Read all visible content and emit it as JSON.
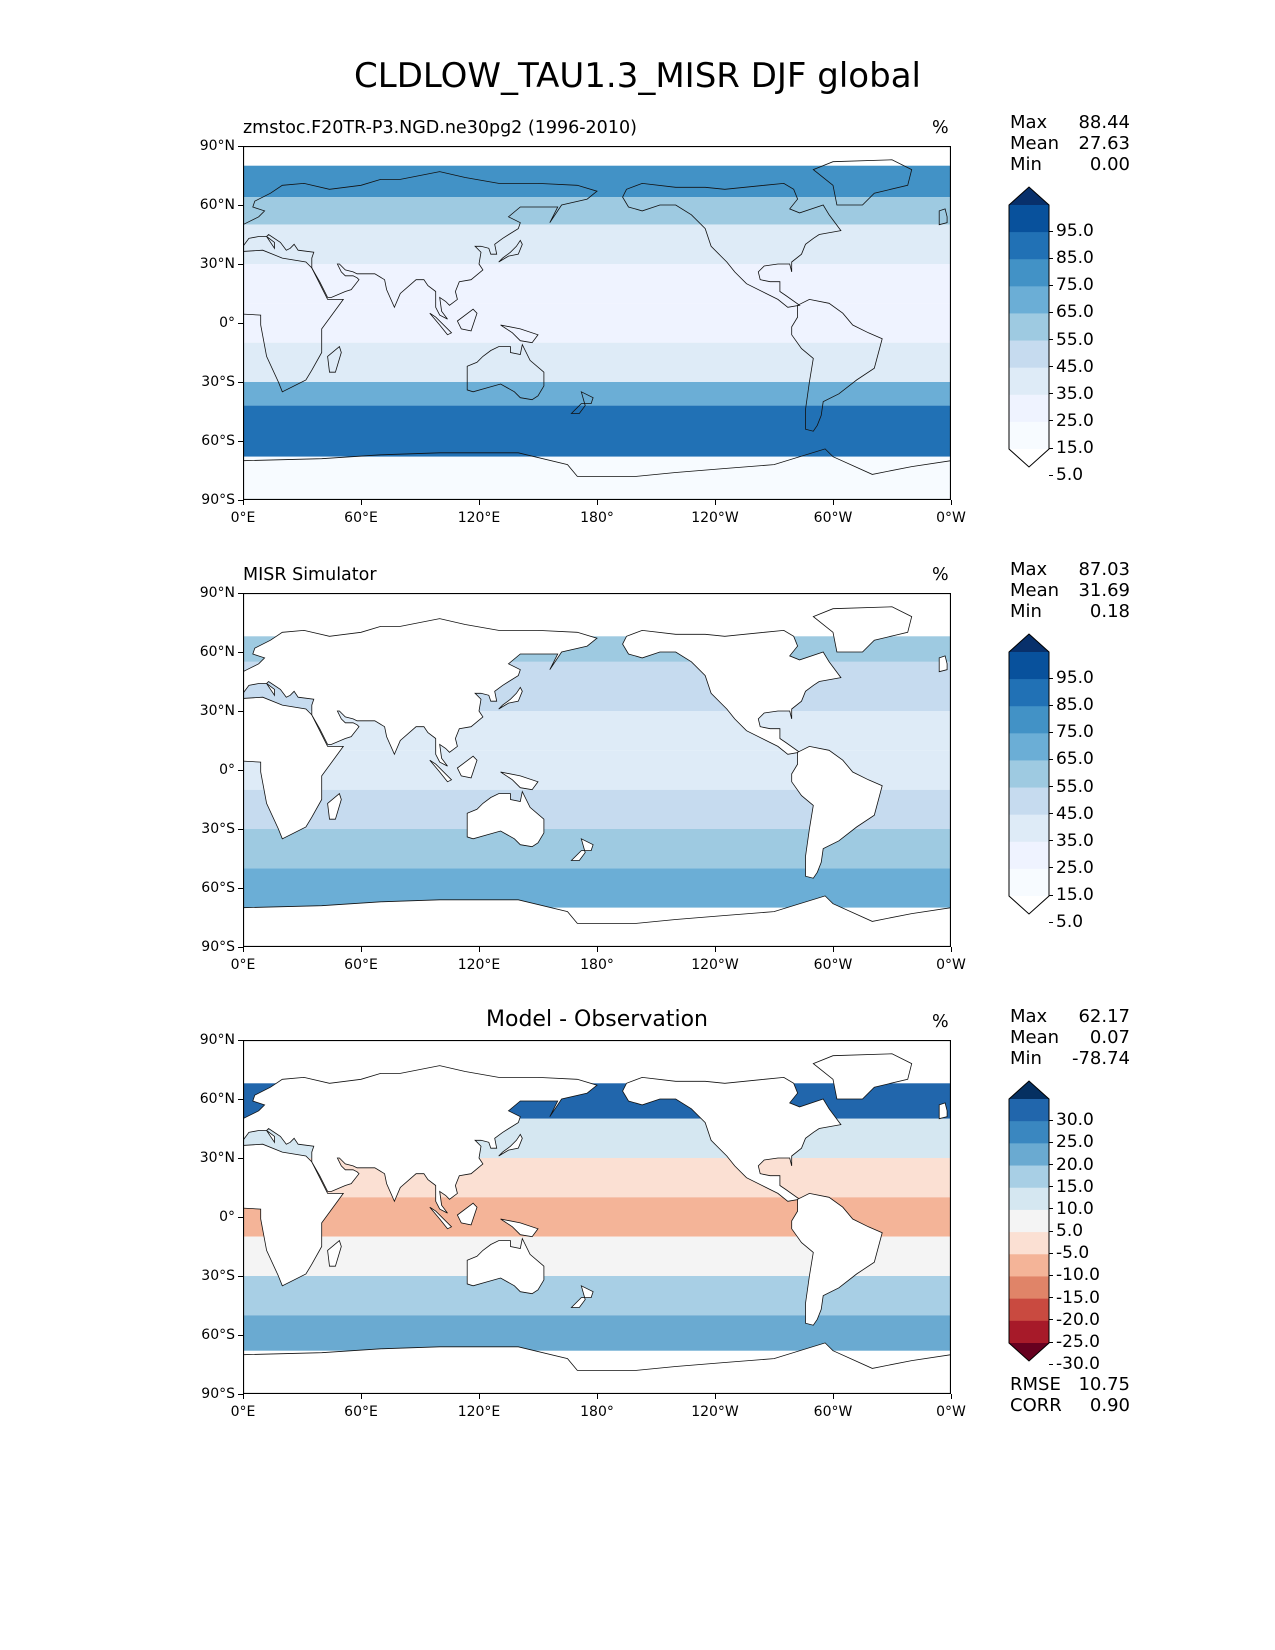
{
  "title": "CLDLOW_TAU1.3_MISR DJF global",
  "x_ticks": [
    "0°E",
    "60°E",
    "120°E",
    "180°",
    "120°W",
    "60°W",
    "0°W"
  ],
  "y_ticks": [
    "90°N",
    "60°N",
    "30°N",
    "0°",
    "30°S",
    "60°S",
    "90°S"
  ],
  "panels": [
    {
      "subtitle": "zmstoc.F20TR-P3.NGD.ne30pg2 (1996-2010)",
      "center_title": "",
      "unit": "%",
      "stats": [
        {
          "label": "Max",
          "value": "88.44"
        },
        {
          "label": "Mean",
          "value": "27.63"
        },
        {
          "label": "Min",
          "value": "0.00"
        }
      ],
      "colorbar": {
        "labels": [
          "95.0",
          "85.0",
          "75.0",
          "65.0",
          "55.0",
          "45.0",
          "35.0",
          "25.0",
          "15.0",
          "5.0"
        ],
        "colors": [
          "#08306b",
          "#08519c",
          "#2171b5",
          "#4292c6",
          "#6baed6",
          "#9ecae1",
          "#c6dbef",
          "#deebf7",
          "#eff3ff",
          "#f7fbff",
          "#ffffff"
        ]
      },
      "extra_stats": []
    },
    {
      "subtitle": "MISR Simulator",
      "center_title": "",
      "unit": "%",
      "stats": [
        {
          "label": "Max",
          "value": "87.03"
        },
        {
          "label": "Mean",
          "value": "31.69"
        },
        {
          "label": "Min",
          "value": "0.18"
        }
      ],
      "colorbar": {
        "labels": [
          "95.0",
          "85.0",
          "75.0",
          "65.0",
          "55.0",
          "45.0",
          "35.0",
          "25.0",
          "15.0",
          "5.0"
        ],
        "colors": [
          "#08306b",
          "#08519c",
          "#2171b5",
          "#4292c6",
          "#6baed6",
          "#9ecae1",
          "#c6dbef",
          "#deebf7",
          "#eff3ff",
          "#f7fbff",
          "#ffffff"
        ]
      },
      "extra_stats": []
    },
    {
      "subtitle": "",
      "center_title": "Model - Observation",
      "unit": "%",
      "stats": [
        {
          "label": "Max",
          "value": "62.17"
        },
        {
          "label": "Mean",
          "value": "0.07"
        },
        {
          "label": "Min",
          "value": "-78.74"
        }
      ],
      "colorbar": {
        "labels": [
          "30.0",
          "25.0",
          "20.0",
          "15.0",
          "10.0",
          "5.0",
          "-5.0",
          "-10.0",
          "-15.0",
          "-20.0",
          "-25.0",
          "-30.0"
        ],
        "colors": [
          "#053061",
          "#2166ac",
          "#3a87c0",
          "#6aaad1",
          "#a8cfe5",
          "#d5e7f1",
          "#f4f4f4",
          "#fbe0d3",
          "#f4b498",
          "#e08468",
          "#c94a40",
          "#a71a29",
          "#67001f"
        ]
      },
      "extra_stats": [
        {
          "label": "RMSE",
          "value": "10.75"
        },
        {
          "label": "CORR",
          "value": "0.90"
        }
      ]
    }
  ]
}
